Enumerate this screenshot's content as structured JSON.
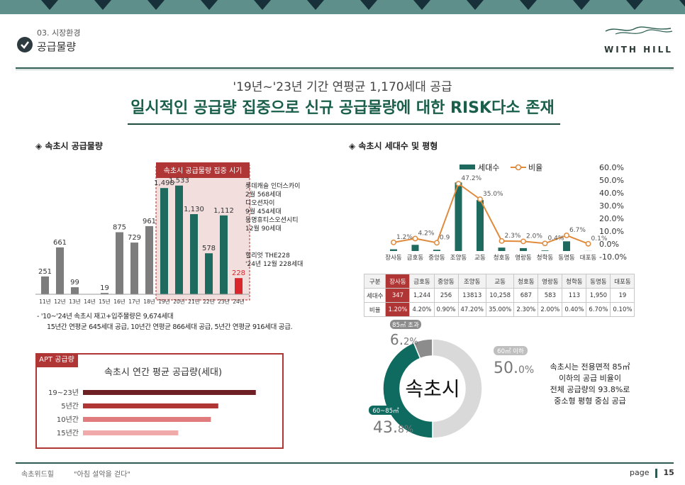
{
  "header": {
    "section_number": "03. 시장환경",
    "section_title": "공급물량",
    "logo_text": "WITH HILL"
  },
  "headline": {
    "line1": "'19년~'23년 기간 연평균 1,170세대 공급",
    "line2": "일시적인 공급량 집중으로 신규 공급물량에 대한 RISK다소 존재"
  },
  "left_section_title": "◈ 속초시 공급물량",
  "right_section_title": "◈ 속초시 세대수 및 평형",
  "highlight_label": "속초시 공급물량 집중 시기",
  "supply_notes": [
    "롯데캐슬 인더스카이",
    "2월 568세대",
    "디오션자이",
    "9월 454세대",
    "동명휴티스오션시티",
    "12월 90세대"
  ],
  "supply_notes2": [
    "힐리엇 THE228",
    "'24년 12월 228세대"
  ],
  "footnote": {
    "line1": "- '10~'24년 속초시 재고+입주물량은 9,674세대",
    "line2": "15년간 연평균 645세대 공급, 10년간 연평균 866세대 공급, 5년간 연평균 916세대 공급."
  },
  "colors": {
    "gray_bar": "#7d7d7d",
    "teal_bar": "#1f6a5f",
    "red_bar": "#d8262c",
    "highlight_fill": "#f3dede",
    "highlight_border": "#c0504d",
    "orange_line": "#e08a3c"
  },
  "chart_data": [
    {
      "type": "bar",
      "title": "",
      "categories": [
        "11년",
        "12년",
        "13년",
        "14년",
        "15년",
        "16년",
        "17년",
        "18년",
        "19년",
        "20년",
        "21년",
        "22년",
        "23년",
        "24년"
      ],
      "values": [
        251,
        661,
        99,
        0,
        19,
        875,
        729,
        961,
        1498,
        1533,
        1130,
        578,
        1112,
        228
      ],
      "labels": [
        "251",
        "661",
        "99",
        "",
        "19",
        "875",
        "729",
        "961",
        "1,498",
        "1,533",
        "1,130",
        "578",
        "1,112",
        "228"
      ],
      "ylim": [
        0,
        1700
      ]
    },
    {
      "type": "bar",
      "title": "",
      "legend": [
        "세대수",
        "비율"
      ],
      "categories": [
        "장사동",
        "금호동",
        "중앙동",
        "조양동",
        "교동",
        "청호동",
        "영랑동",
        "청학동",
        "동명동",
        "대포동"
      ],
      "series": [
        {
          "name": "세대수",
          "values": [
            347,
            1244,
            256,
            13813,
            10258,
            687,
            583,
            113,
            1950,
            19
          ]
        },
        {
          "name": "비율",
          "values": [
            1.2,
            4.2,
            0.9,
            47.2,
            35.0,
            2.3,
            2.0,
            0.4,
            6.7,
            0.1
          ]
        }
      ],
      "point_labels": [
        "1.2%",
        "4.2%",
        "0.9",
        "47.2%",
        "35.0%",
        "2.3%",
        "2.0%",
        "0.4%",
        "6.7%",
        "0.1%"
      ],
      "y2_ticks": [
        "60.0%",
        "50.0%",
        "40.0%",
        "30.0%",
        "20.0%",
        "10.0%",
        "0.0%",
        "-10.0%"
      ],
      "y2lim": [
        -10,
        60
      ],
      "legend_position": "top"
    },
    {
      "type": "pie",
      "title": "",
      "center_label": "속초시",
      "slices": [
        {
          "tag": "60㎡ 이하",
          "big": "50.",
          "small": "0%",
          "value": 50.0
        },
        {
          "tag": "60~85㎡",
          "big": "43.",
          "small": "8%",
          "value": 43.8
        },
        {
          "tag": "85㎡ 초과",
          "big": "6.",
          "small": "2%",
          "value": 6.2
        }
      ],
      "colors": [
        "#d9d9d9",
        "#0f6a60",
        "#8c8c8c"
      ]
    },
    {
      "type": "bar",
      "title": "속초시 연간 평균 공급량(세대)",
      "categories": [
        "19~23년",
        "5년간",
        "10년간",
        "15년간"
      ],
      "values": [
        1170,
        916,
        866,
        645
      ],
      "colors": [
        "#6d1f24",
        "#b03535",
        "#e07b7e",
        "#f0aaaa"
      ]
    }
  ],
  "table": {
    "rows": [
      [
        "구분",
        "장사동",
        "금호동",
        "중앙동",
        "조양동",
        "교동",
        "청호동",
        "영랑동",
        "청학동",
        "동명동",
        "대포동"
      ],
      [
        "세대수",
        "347",
        "1,244",
        "256",
        "13813",
        "10,258",
        "687",
        "583",
        "113",
        "1,950",
        "19"
      ],
      [
        "비율",
        "1.20%",
        "4.20%",
        "0.90%",
        "47.20%",
        "35.00%",
        "2.30%",
        "2.00%",
        "0.40%",
        "6.70%",
        "0.10%"
      ]
    ]
  },
  "apt_tag": "APT 공급량",
  "donut_desc": [
    "속초시는 전용면적 85㎡",
    "이하의 공급 비율이",
    "전체 공급량의 93.8%로",
    "중소형 평형 중심 공급"
  ],
  "footer": {
    "left": "속초위드힐",
    "slogan": "\"아침 설악을 걷다\"",
    "page_label": "page",
    "page_number": "15"
  }
}
